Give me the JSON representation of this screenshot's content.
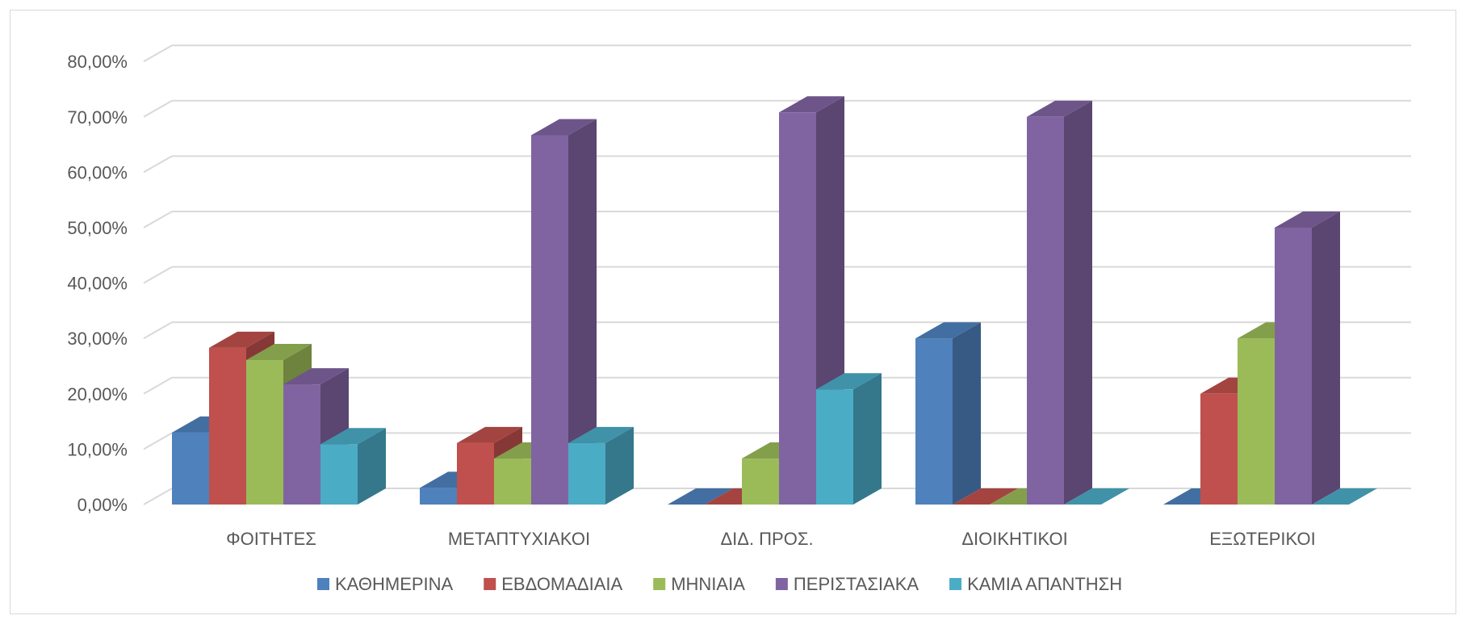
{
  "chart_data": {
    "type": "bar",
    "title": "",
    "xlabel": "",
    "ylabel": "",
    "categories": [
      "ΦΟΙΤΗΤΕΣ",
      "ΜΕΤΑΠΤΥΧΙΑΚΟΙ",
      "ΔΙΔ. ΠΡΟΣ.",
      "ΔΙΟΙΚΗΤΙΚΟΙ",
      "ΕΞΩΤΕΡΙΚΟΙ"
    ],
    "series": [
      {
        "name": "ΚΑΘΗΜΕΡΙΝΑ",
        "color": "#4F81BD",
        "values": [
          13.0,
          3.0,
          0.0,
          30.0,
          0.0
        ]
      },
      {
        "name": "ΕΒΔΟΜΑΔΙΑΙΑ",
        "color": "#C0504D",
        "values": [
          28.3,
          11.1,
          0.0,
          0.0,
          20.0
        ]
      },
      {
        "name": "ΜΗΝΙΑΙΑ",
        "color": "#9BBB59",
        "values": [
          26.1,
          8.3,
          8.3,
          0.0,
          30.0
        ]
      },
      {
        "name": "ΠΕΡΙΣΤΑΣΙΑΚΑ",
        "color": "#8064A2",
        "values": [
          21.7,
          66.7,
          70.8,
          70.0,
          50.0
        ]
      },
      {
        "name": "ΚΑΜΙΑ ΑΠΑΝΤΗΣΗ",
        "color": "#4BACC6",
        "values": [
          10.9,
          11.1,
          20.8,
          0.0,
          0.0
        ]
      }
    ],
    "y_ticks": [
      "0,00%",
      "10,00%",
      "20,00%",
      "30,00%",
      "40,00%",
      "50,00%",
      "60,00%",
      "70,00%",
      "80,00%"
    ],
    "ylim": [
      0,
      80
    ],
    "grid": true,
    "legend_position": "bottom"
  }
}
